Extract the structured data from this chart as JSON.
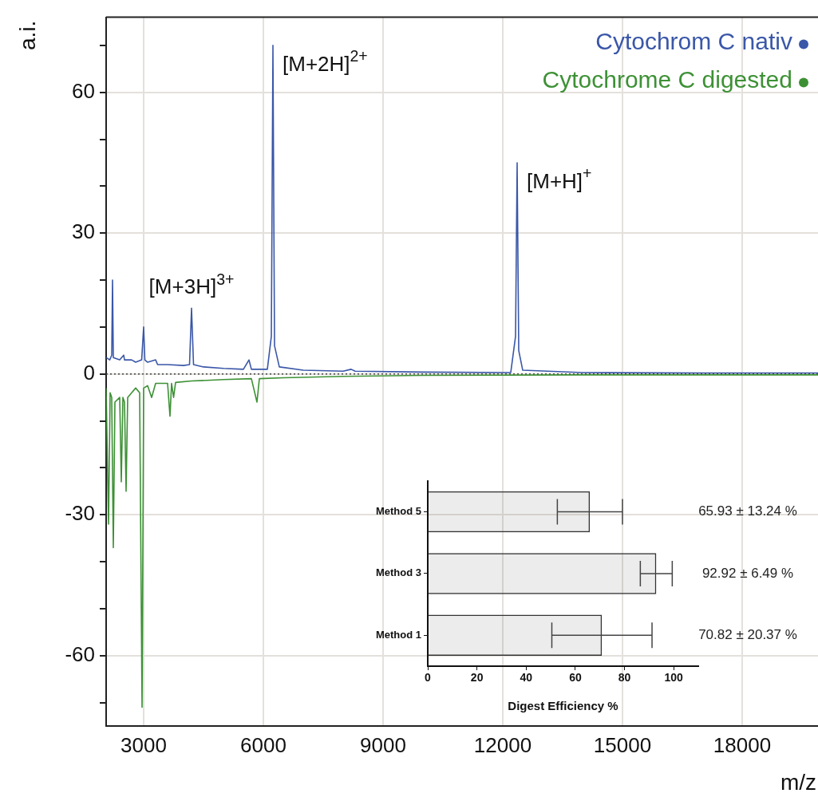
{
  "chart_data": [
    {
      "type": "line",
      "xlabel": "m/z",
      "ylabel": "a.i.",
      "legend": "top right",
      "annotations": [
        {
          "text": "[M+3H]$^{3+}$",
          "x": 4200,
          "y": 14
        },
        {
          "text": "[M+2H]$^{2+}$",
          "x": 6240,
          "y": 70
        },
        {
          "text": "[M+H]$^{+}$",
          "x": 12360,
          "y": 45
        }
      ],
      "series": [
        {
          "name": "Cytochrom C nativ",
          "color": "#3a57a8",
          "x": [
            2060,
            2150,
            2200,
            2220,
            2240,
            2400,
            2500,
            2520,
            2700,
            2800,
            2950,
            3000,
            3030,
            3100,
            3300,
            3350,
            3600,
            4000,
            4150,
            4200,
            4250,
            4500,
            5000,
            5500,
            5640,
            5700,
            6100,
            6200,
            6240,
            6280,
            6400,
            7000,
            8000,
            8200,
            8300,
            10000,
            12200,
            12320,
            12360,
            12400,
            12500,
            14000,
            17000,
            19900
          ],
          "values": [
            3.5,
            3,
            4,
            20,
            3.5,
            3,
            4,
            3,
            3,
            2.5,
            3,
            10,
            3,
            2.5,
            3,
            2,
            2,
            1.8,
            2,
            14,
            2,
            1.5,
            1.2,
            1,
            3,
            1,
            1,
            8,
            70,
            6,
            1.5,
            0.8,
            0.6,
            1,
            0.6,
            0.4,
            0.3,
            8,
            45,
            5,
            0.8,
            0.3,
            0.2,
            0.2
          ]
        },
        {
          "name": "Cytochrome C digested",
          "color": "#3d9135",
          "x": [
            2060,
            2120,
            2160,
            2200,
            2240,
            2280,
            2400,
            2440,
            2480,
            2520,
            2560,
            2600,
            2700,
            2800,
            2900,
            2960,
            3000,
            3100,
            3200,
            3300,
            3600,
            3660,
            3700,
            3750,
            3800,
            4200,
            5000,
            5700,
            5840,
            5900,
            6500,
            8000,
            10000,
            14000,
            19900
          ],
          "values": [
            -3,
            -32,
            -4,
            -5,
            -37,
            -6,
            -5,
            -23,
            -5,
            -6,
            -25,
            -5,
            -4,
            -3,
            -4,
            -71,
            -3,
            -2.5,
            -5,
            -2,
            -2,
            -9,
            -2,
            -5,
            -1.8,
            -1.5,
            -1.2,
            -1,
            -6,
            -1,
            -0.8,
            -0.5,
            -0.3,
            -0.2,
            -0.2
          ]
        }
      ],
      "xlim": [
        2060,
        19900
      ],
      "xticks": [
        3000,
        6000,
        9000,
        12000,
        15000,
        18000
      ],
      "ylim": [
        -75,
        76
      ],
      "yticks": [
        {
          "value": -70,
          "label": null
        },
        -60,
        {
          "value": -50,
          "label": null
        },
        {
          "value": -40,
          "label": null
        },
        -30,
        {
          "value": -20,
          "label": null
        },
        {
          "value": -10,
          "label": null
        },
        0,
        {
          "value": 10,
          "label": null
        },
        {
          "value": 20,
          "label": null
        },
        30,
        {
          "value": 40,
          "label": null
        },
        {
          "value": 50,
          "label": null
        },
        60,
        {
          "value": 70,
          "label": null
        }
      ],
      "grid": true,
      "ref_lines": [
        {
          "axis": "y",
          "value": 0,
          "label": null,
          "color": "#444444",
          "line_style": "dotted"
        }
      ]
    },
    {
      "type": "bar",
      "orientation": "horizontal",
      "categories": [
        "Method 5",
        "Method 3",
        "Method 1"
      ],
      "values": [
        65.93,
        92.92,
        70.82
      ],
      "errors": [
        13.24,
        6.49,
        20.37
      ],
      "value_labels": [
        "65.93 ± 13.24 %",
        "92.92 ± 6.49 %",
        "70.82 ± 20.37 %"
      ],
      "color": "#333333",
      "xlabel": "Digest Efficiency %",
      "xlim": [
        0,
        110
      ],
      "xticks": [
        0,
        20,
        40,
        60,
        80,
        100
      ]
    }
  ]
}
